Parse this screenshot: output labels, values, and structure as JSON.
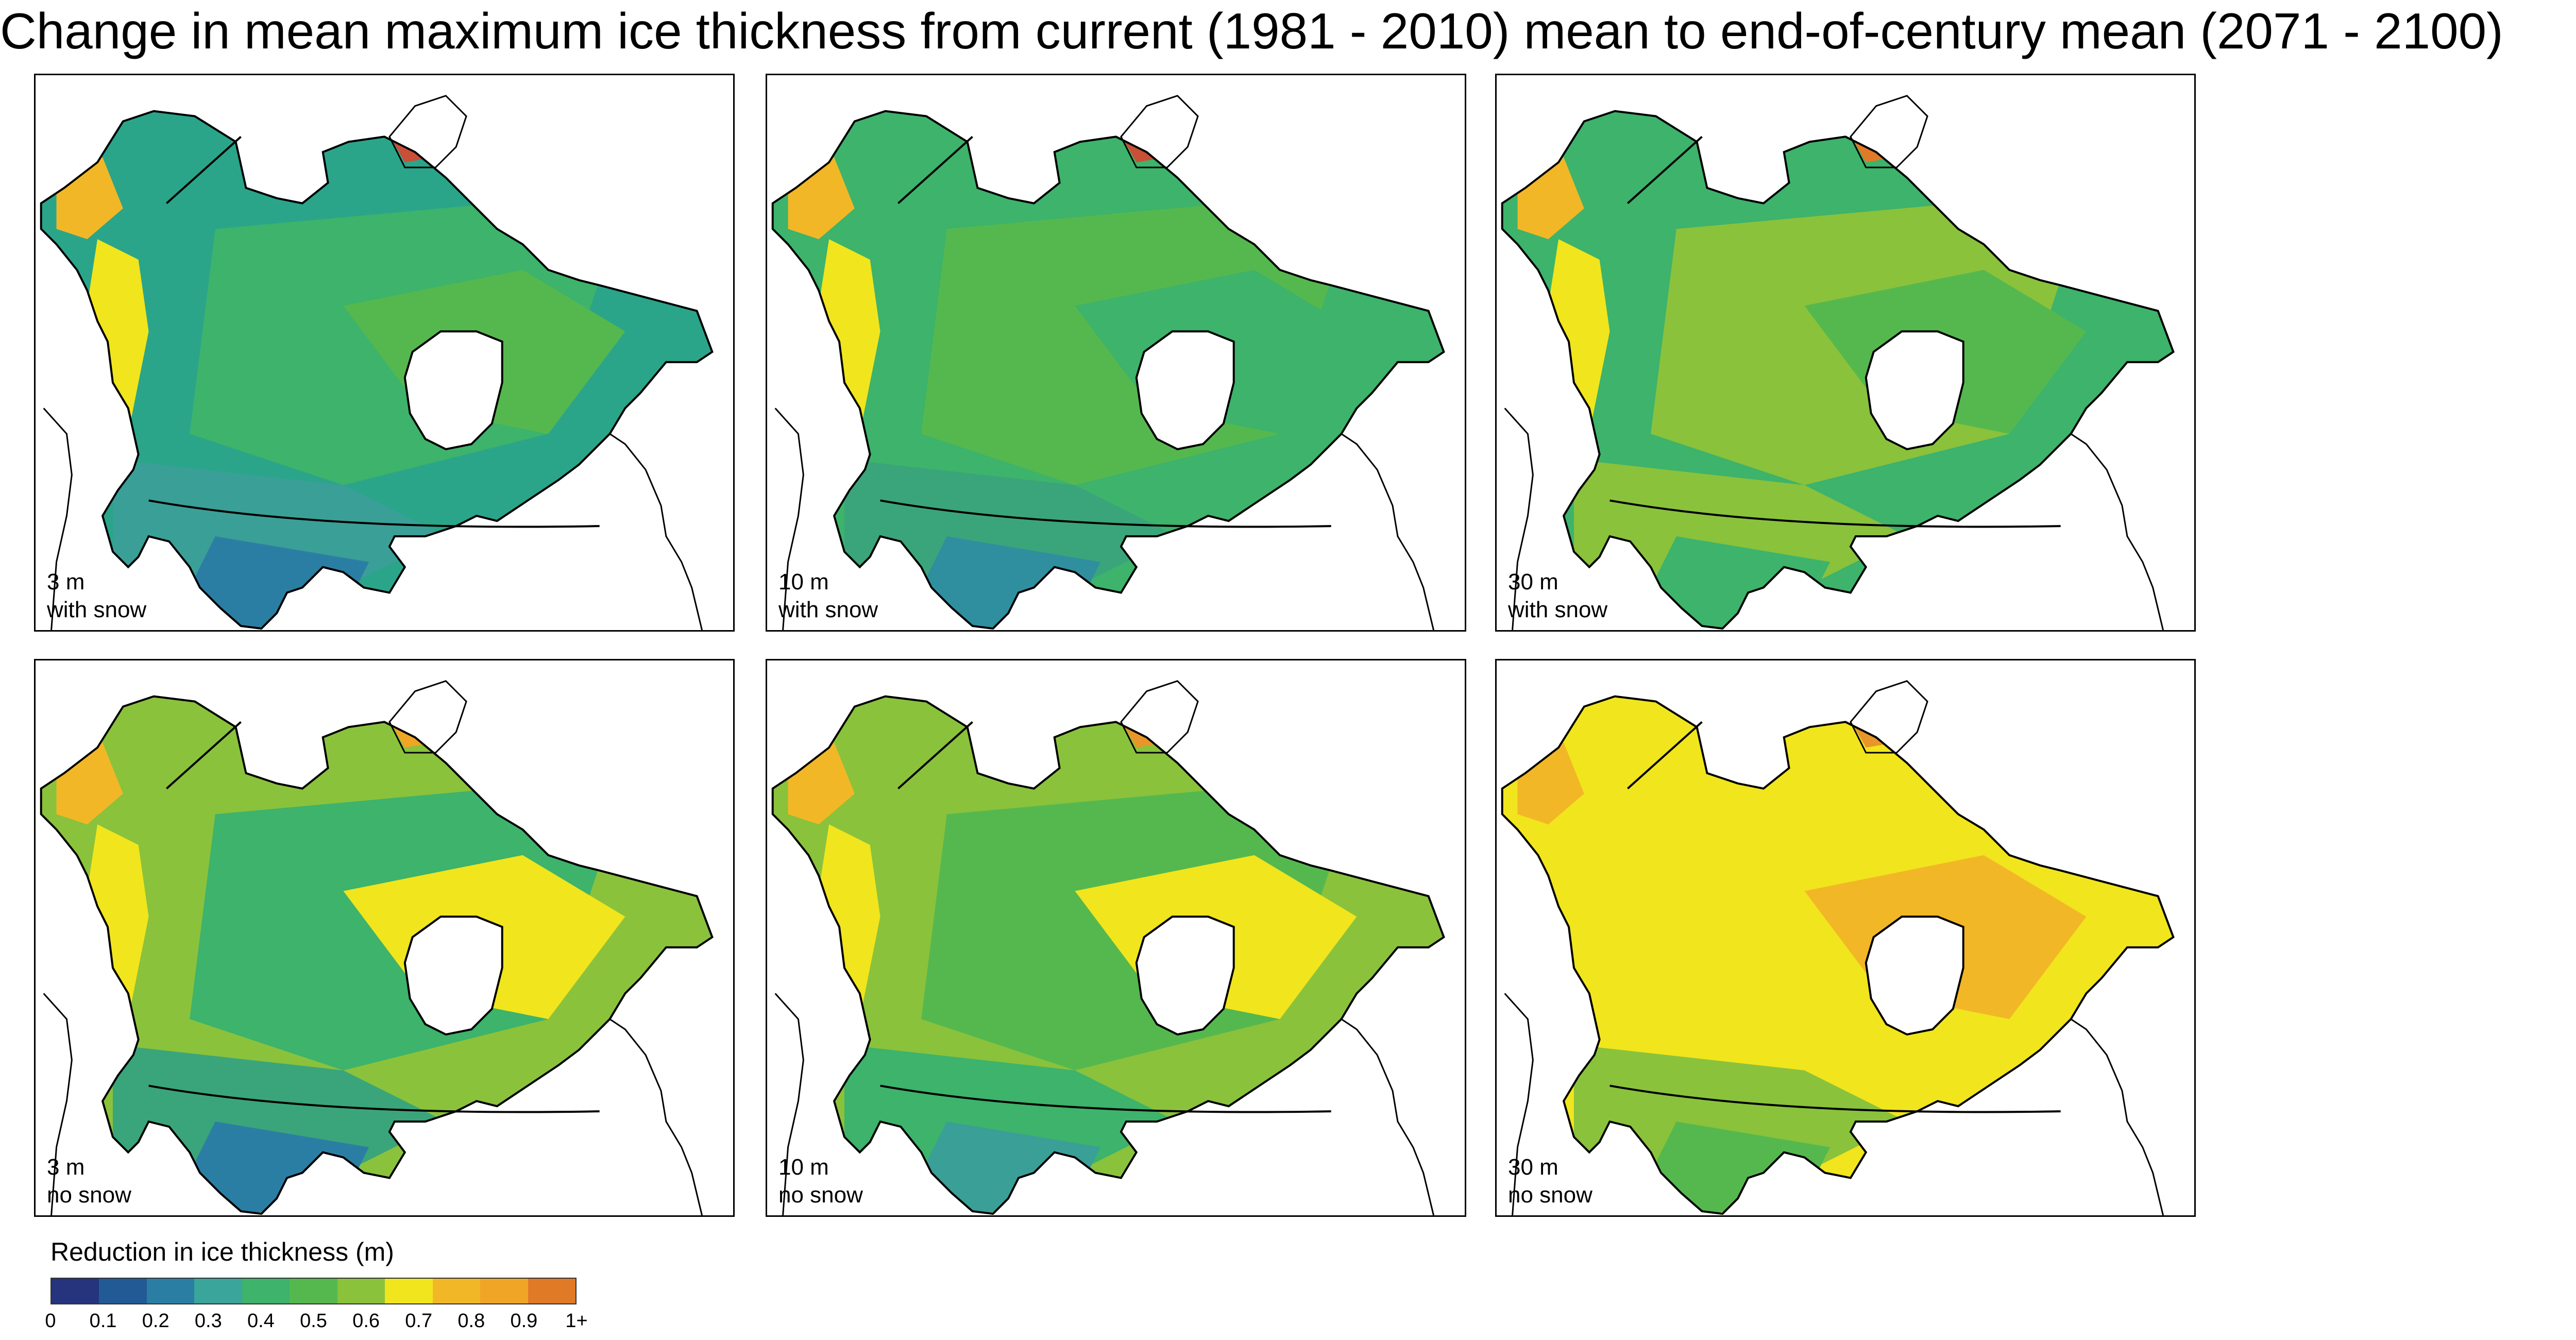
{
  "title": "Change in mean maximum ice thickness from current (1981 - 2010) mean to end-of-century mean (2071 - 2100)",
  "panels": [
    {
      "depth": "3 m",
      "snow": "with snow",
      "palette": [
        "#2aa58a",
        "#3db36b",
        "#55b84e",
        "#3a9f97",
        "#2b7ea3",
        "#f1e51d",
        "#f2b726",
        "#c94f36"
      ]
    },
    {
      "depth": "10 m",
      "snow": "with snow",
      "palette": [
        "#3db36b",
        "#55b84e",
        "#3db36b",
        "#3aa57a",
        "#2f8f9f",
        "#f1e51d",
        "#f2b726",
        "#c94f36"
      ]
    },
    {
      "depth": "30 m",
      "snow": "with snow",
      "palette": [
        "#3db36b",
        "#8ac23c",
        "#55b84e",
        "#8ac23c",
        "#3db36b",
        "#f1e51d",
        "#f2b726",
        "#e07a27"
      ]
    },
    {
      "depth": "3 m",
      "snow": "no snow",
      "palette": [
        "#8ac23c",
        "#3db36b",
        "#f1e51d",
        "#3aa57a",
        "#2b7ea3",
        "#f1e51d",
        "#f2b726",
        "#f0a527"
      ]
    },
    {
      "depth": "10 m",
      "snow": "no snow",
      "palette": [
        "#8ac23c",
        "#55b84e",
        "#f1e51d",
        "#3db36b",
        "#3a9f97",
        "#f1e51d",
        "#f2b726",
        "#e8962a"
      ]
    },
    {
      "depth": "30 m",
      "snow": "no snow",
      "palette": [
        "#f1e51d",
        "#f1e51d",
        "#f2b726",
        "#8ac23c",
        "#55b84e",
        "#f1e51d",
        "#f2b726",
        "#e8962a"
      ]
    }
  ],
  "legend": {
    "title": "Reduction in ice thickness (m)",
    "ticks": [
      "0",
      "0.1",
      "0.2",
      "0.3",
      "0.4",
      "0.5",
      "0.6",
      "0.7",
      "0.8",
      "0.9",
      "1+"
    ],
    "colors": [
      "#26347d",
      "#225a96",
      "#2b7ea3",
      "#3aa59a",
      "#3db36b",
      "#55b84e",
      "#8ac23c",
      "#f1e51d",
      "#f2b726",
      "#f0a527",
      "#e07a27",
      "#c94f36"
    ]
  }
}
